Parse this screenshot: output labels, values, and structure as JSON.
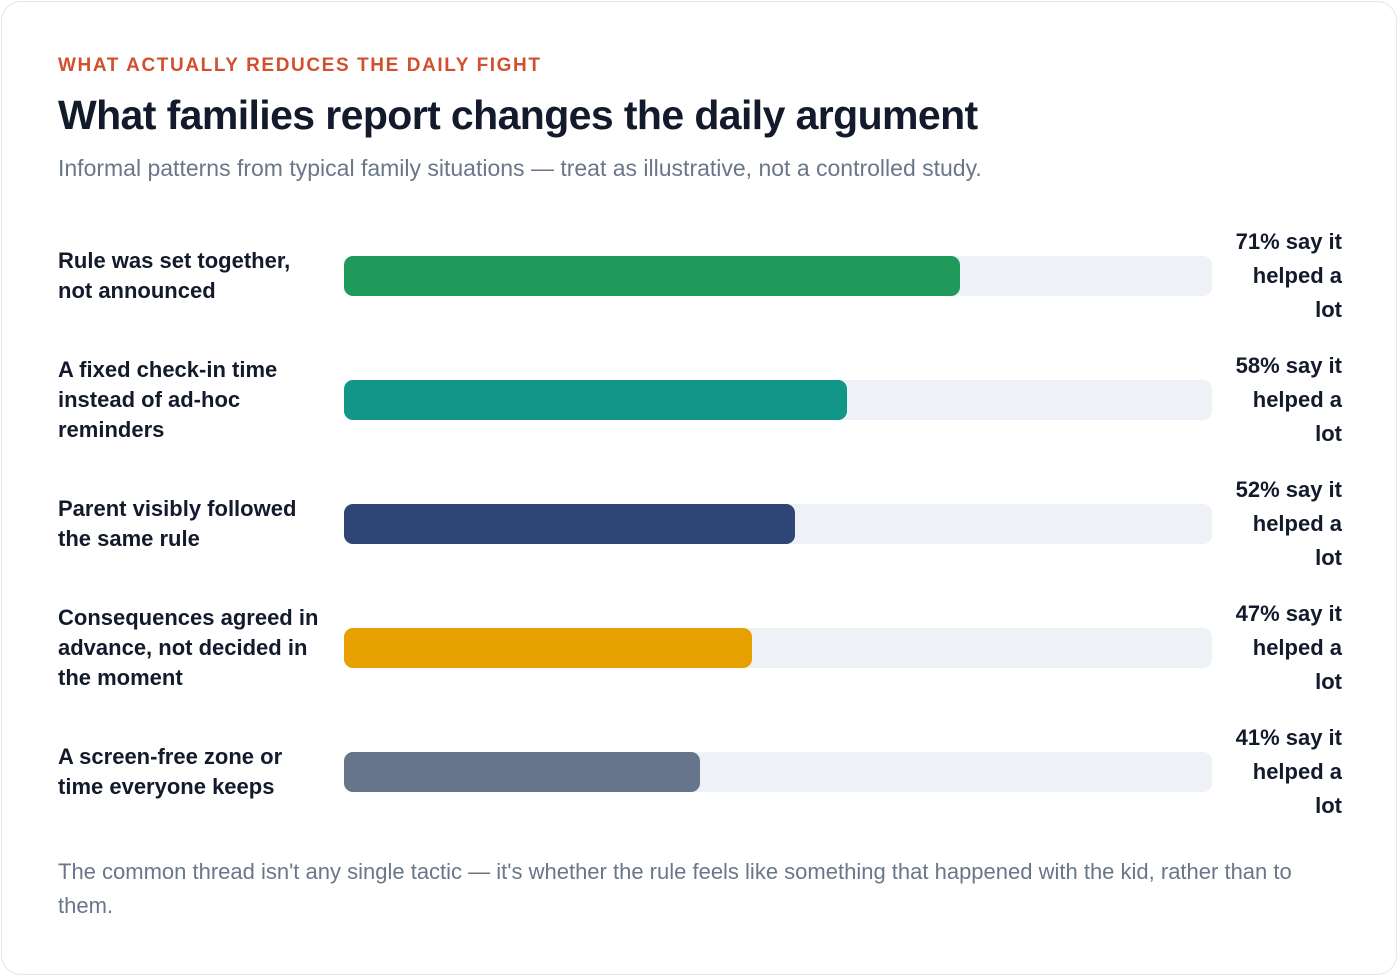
{
  "eyebrow": "WHAT ACTUALLY REDUCES THE DAILY FIGHT",
  "title": "What families report changes the daily argument",
  "subtitle": "Informal patterns from typical family situations — treat as illustrative, not a controlled study.",
  "chart_data": {
    "type": "bar",
    "orientation": "horizontal",
    "xlim": [
      0,
      100
    ],
    "unit": "%",
    "grid": false,
    "legend": "none",
    "categories": [
      "Rule was set together, not announced",
      "A fixed check-in time instead of ad-hoc reminders",
      "Parent visibly followed the same rule",
      "Consequences agreed in advance, not decided in the moment",
      "A screen-free zone or time everyone keeps"
    ],
    "values": [
      71,
      58,
      52,
      47,
      41
    ],
    "value_labels": [
      "71% say it helped a lot",
      "58% say it helped a lot",
      "52% say it helped a lot",
      "47% say it helped a lot",
      "41% say it helped a lot"
    ],
    "colors": [
      "#1f9a5b",
      "#129687",
      "#2e4575",
      "#e6a100",
      "#66758c"
    ],
    "track_color": "#eef1f5"
  },
  "footer": "The common thread isn't any single tactic — it's whether the rule feels like something that happened with the kid, rather than to them."
}
